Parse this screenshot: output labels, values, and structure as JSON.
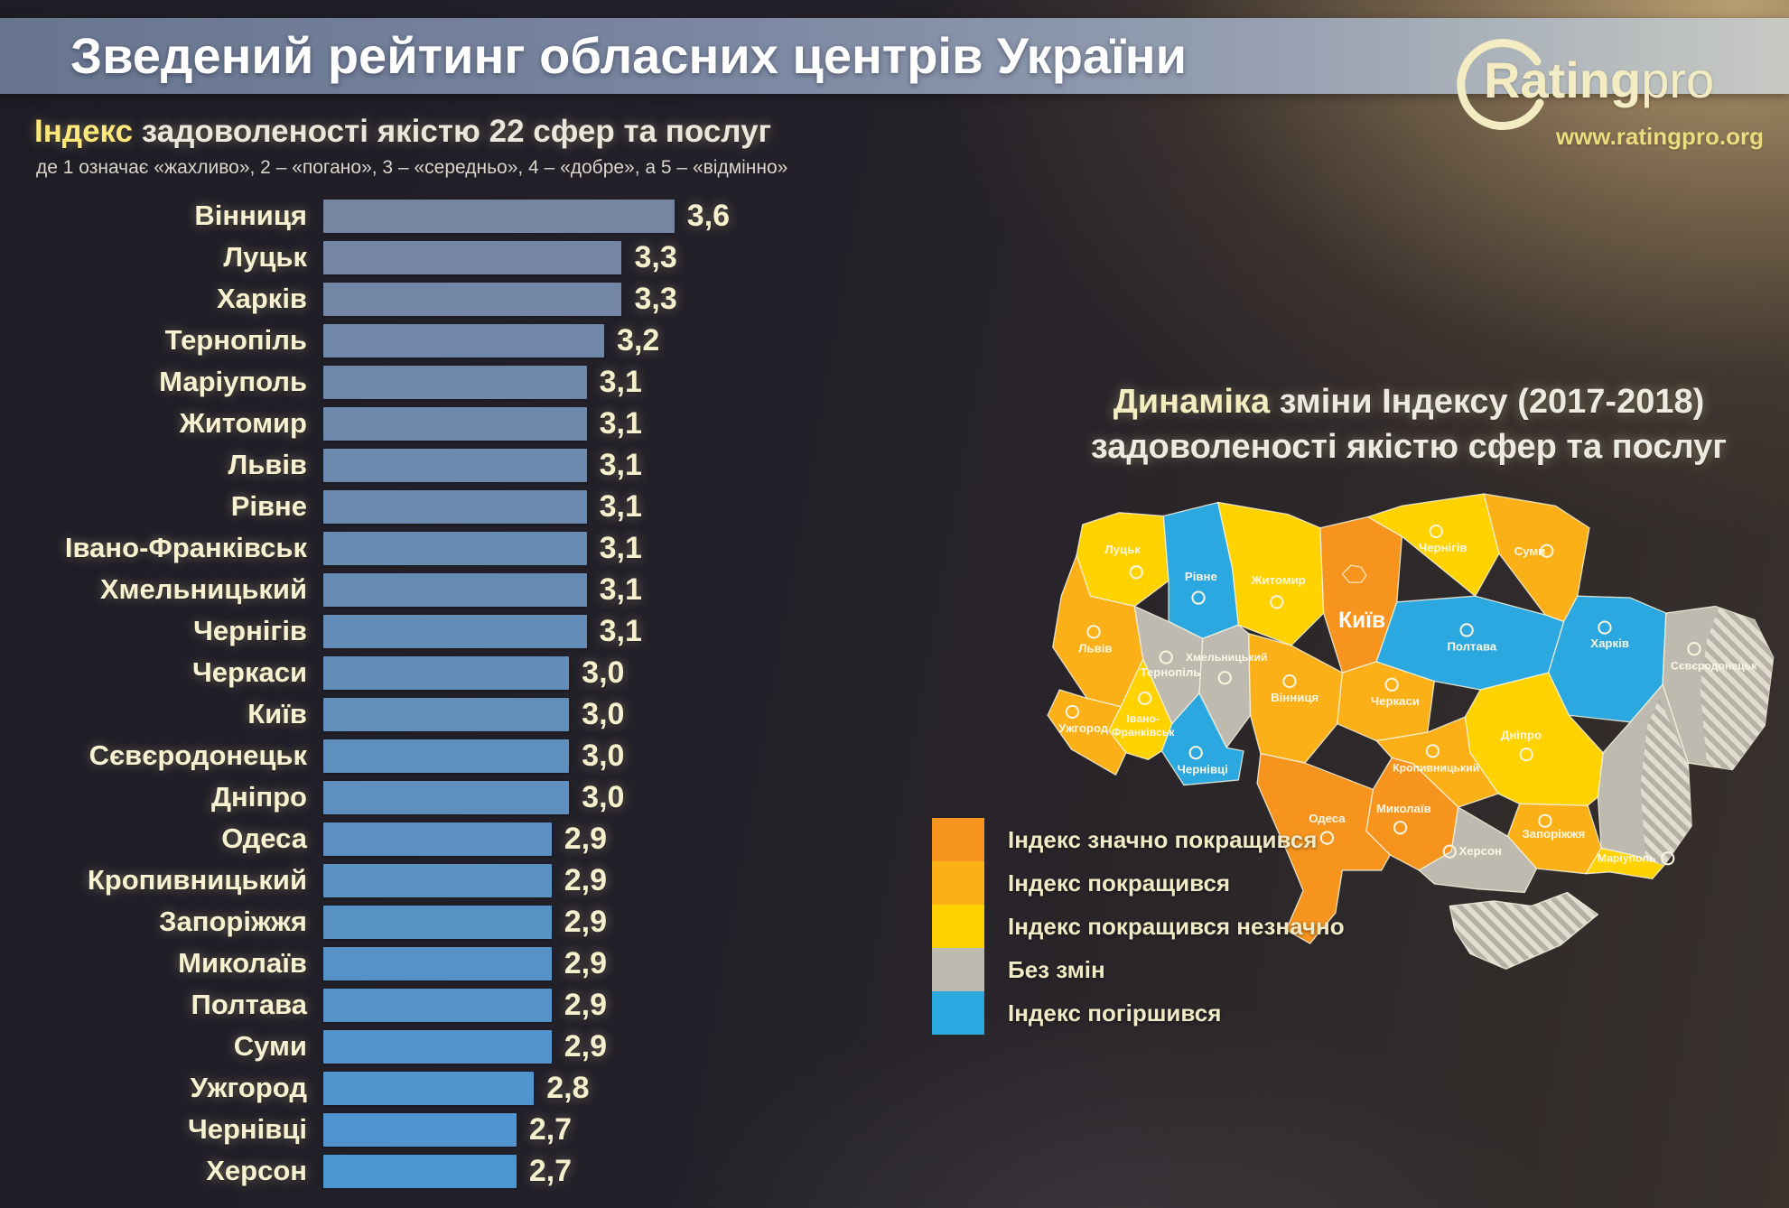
{
  "header": {
    "title": "Зведений рейтинг обласних центрів України"
  },
  "logo": {
    "brand_bold": "Rating",
    "brand_light": "pro",
    "url": "www.ratingpro.org"
  },
  "chart": {
    "title_highlight": "Індекс",
    "title_rest": " задоволеності якістю 22 сфер та послуг",
    "scale_note": "де 1 означає «жахливо», 2 – «погано», 3 – «середньо», 4 – «добре», а 5 – «відмінно»",
    "rows": [
      {
        "city": "Вінниця",
        "value": "3,6"
      },
      {
        "city": "Луцьк",
        "value": "3,3"
      },
      {
        "city": "Харків",
        "value": "3,3"
      },
      {
        "city": "Тернопіль",
        "value": "3,2"
      },
      {
        "city": "Маріуполь",
        "value": "3,1"
      },
      {
        "city": "Житомир",
        "value": "3,1"
      },
      {
        "city": "Львів",
        "value": "3,1"
      },
      {
        "city": "Рівне",
        "value": "3,1"
      },
      {
        "city": "Івано-Франківськ",
        "value": "3,1"
      },
      {
        "city": "Хмельницький",
        "value": "3,1"
      },
      {
        "city": "Чернігів",
        "value": "3,1"
      },
      {
        "city": "Черкаси",
        "value": "3,0"
      },
      {
        "city": "Київ",
        "value": "3,0"
      },
      {
        "city": "Сєвєродонецьк",
        "value": "3,0"
      },
      {
        "city": "Дніпро",
        "value": "3,0"
      },
      {
        "city": "Одеса",
        "value": "2,9"
      },
      {
        "city": "Кропивницький",
        "value": "2,9"
      },
      {
        "city": "Запоріжжя",
        "value": "2,9"
      },
      {
        "city": "Миколаїв",
        "value": "2,9"
      },
      {
        "city": "Полтава",
        "value": "2,9"
      },
      {
        "city": "Суми",
        "value": "2,9"
      },
      {
        "city": "Ужгород",
        "value": "2,8"
      },
      {
        "city": "Чернівці",
        "value": "2,7"
      },
      {
        "city": "Херсон",
        "value": "2,7"
      }
    ]
  },
  "chart_data": [
    {
      "type": "bar",
      "orientation": "horizontal",
      "title": "Індекс задоволеності якістю 22 сфер та послуг",
      "scale": "1 = жахливо, 2 = погано, 3 = середньо, 4 = добре, 5 = відмінно",
      "value_range": [
        1,
        5
      ],
      "categories": [
        "Вінниця",
        "Луцьк",
        "Харків",
        "Тернопіль",
        "Маріуполь",
        "Житомир",
        "Львів",
        "Рівне",
        "Івано-Франківськ",
        "Хмельницький",
        "Чернігів",
        "Черкаси",
        "Київ",
        "Сєвєродонецьк",
        "Дніпро",
        "Одеса",
        "Кропивницький",
        "Запоріжжя",
        "Миколаїв",
        "Полтава",
        "Суми",
        "Ужгород",
        "Чернівці",
        "Херсон"
      ],
      "values": [
        3.6,
        3.3,
        3.3,
        3.2,
        3.1,
        3.1,
        3.1,
        3.1,
        3.1,
        3.1,
        3.1,
        3.0,
        3.0,
        3.0,
        3.0,
        2.9,
        2.9,
        2.9,
        2.9,
        2.9,
        2.9,
        2.8,
        2.7,
        2.7
      ],
      "value_format": "comma_decimal",
      "legend_position": "none",
      "grid": false
    },
    {
      "type": "heatmap",
      "subtype": "choropleth-map",
      "title": "Динаміка зміни Індексу (2017-2018) задоволеності якістю сфер та послуг",
      "categories_legend": [
        "Індекс значно покращився",
        "Індекс покращився",
        "Індекс покращився незначно",
        "Без змін",
        "Індекс погіршився"
      ],
      "series": [
        {
          "region": "Київ",
          "status": "Індекс значно покращився"
        },
        {
          "region": "Миколаїв",
          "status": "Індекс значно покращився"
        },
        {
          "region": "Одеса",
          "status": "Індекс значно покращився"
        },
        {
          "region": "Львів",
          "status": "Індекс покращився"
        },
        {
          "region": "Вінниця",
          "status": "Індекс покращився"
        },
        {
          "region": "Суми",
          "status": "Індекс покращився"
        },
        {
          "region": "Черкаси",
          "status": "Індекс покращився"
        },
        {
          "region": "Кропивницький",
          "status": "Індекс покращився"
        },
        {
          "region": "Запоріжжя",
          "status": "Індекс покращився"
        },
        {
          "region": "Ужгород",
          "status": "Індекс покращився"
        },
        {
          "region": "Луцьк",
          "status": "Індекс покращився незначно"
        },
        {
          "region": "Житомир",
          "status": "Індекс покращився незначно"
        },
        {
          "region": "Чернігів",
          "status": "Індекс покращився незначно"
        },
        {
          "region": "Івано-Франківськ",
          "status": "Індекс покращився незначно"
        },
        {
          "region": "Дніпро",
          "status": "Індекс покращився незначно"
        },
        {
          "region": "Маріуполь",
          "status": "Індекс покращився незначно"
        },
        {
          "region": "Тернопіль",
          "status": "Без змін"
        },
        {
          "region": "Хмельницький",
          "status": "Без змін"
        },
        {
          "region": "Херсон",
          "status": "Без змін"
        },
        {
          "region": "Сєвєродонецьк",
          "status": "Без змін"
        },
        {
          "region": "Рівне",
          "status": "Індекс погіршився"
        },
        {
          "region": "Чернівці",
          "status": "Індекс погіршився"
        },
        {
          "region": "Полтава",
          "status": "Індекс погіршився"
        },
        {
          "region": "Харків",
          "status": "Індекс погіршився"
        }
      ]
    }
  ],
  "dynamics": {
    "title_highlight": "Динаміка",
    "title_rest": " зміни Індексу (2017-2018)",
    "title_line2": "задоволеності якістю сфер та послуг",
    "legend": [
      {
        "label": "Індекс значно покращився",
        "color": "#F7941E"
      },
      {
        "label": "Індекс покращився",
        "color": "#FCB017"
      },
      {
        "label": "Індекс покращився незначно",
        "color": "#FFD200"
      },
      {
        "label": "Без змін",
        "color": "#BFBAB0"
      },
      {
        "label": "Індекс погіршився",
        "color": "#2CA8E0"
      }
    ],
    "map": {
      "regions": {
        "lutsk": {
          "label": "Луцьк",
          "color": "#FFD200"
        },
        "rivne": {
          "label": "Рівне",
          "color": "#2CA8E0"
        },
        "zhytomyr": {
          "label": "Житомир",
          "color": "#FFD200"
        },
        "kyiv": {
          "label": "Київ",
          "color": "#F7941E"
        },
        "chernihiv": {
          "label": "Чернігів",
          "color": "#FFD200"
        },
        "sumy": {
          "label": "Суми",
          "color": "#FCB017"
        },
        "lviv": {
          "label": "Львів",
          "color": "#FCB017"
        },
        "ternopil": {
          "label": "Тернопіль",
          "color": "#BFBAB0"
        },
        "khmelnytskyi": {
          "label": "Хмельницький",
          "color": "#BFBAB0"
        },
        "vinnytsia": {
          "label": "Вінниця",
          "color": "#FCB017"
        },
        "cherkasy": {
          "label": "Черкаси",
          "color": "#FCB017"
        },
        "poltava": {
          "label": "Полтава",
          "color": "#2CA8E0"
        },
        "kharkiv": {
          "label": "Харків",
          "color": "#2CA8E0"
        },
        "sievierodonetsk": {
          "label": "Сєвєродонецьк",
          "color": "#BFBAB0"
        },
        "donetsk": {
          "label": "",
          "color": "#BFBAB0"
        },
        "mariupol": {
          "label": "Маріуполь",
          "color": "#FFD200"
        },
        "dnipro": {
          "label": "Дніпро",
          "color": "#FFD200"
        },
        "kropyvnytskyi": {
          "label": "Кропивницький",
          "color": "#FCB017"
        },
        "zaporizhzhia": {
          "label": "Запоріжжя",
          "color": "#FCB017"
        },
        "mykolaiv": {
          "label": "Миколаїв",
          "color": "#F7941E"
        },
        "odesa": {
          "label": "Одеса",
          "color": "#F7941E"
        },
        "kherson": {
          "label": "Херсон",
          "color": "#BFBAB0"
        },
        "zakarpattia": {
          "label": "Ужгород",
          "color": "#FCB017"
        },
        "ivano": {
          "label_line1": "Івано-",
          "label_line2": "Франківськ",
          "color": "#FFD200"
        },
        "chernivtsi": {
          "label": "Чернівці",
          "color": "#2CA8E0"
        }
      }
    }
  }
}
